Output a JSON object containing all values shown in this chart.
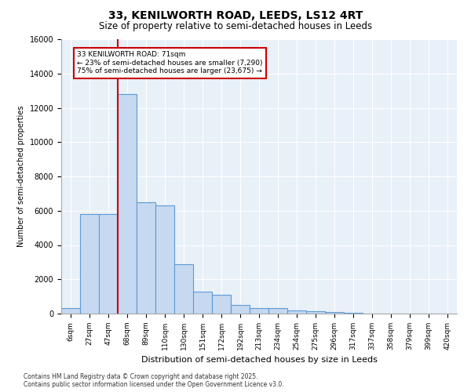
{
  "title_line1": "33, KENILWORTH ROAD, LEEDS, LS12 4RT",
  "title_line2": "Size of property relative to semi-detached houses in Leeds",
  "xlabel": "Distribution of semi-detached houses by size in Leeds",
  "ylabel": "Number of semi-detached properties",
  "footnote": "Contains HM Land Registry data © Crown copyright and database right 2025.\nContains public sector information licensed under the Open Government Licence v3.0.",
  "categories": [
    "6sqm",
    "27sqm",
    "47sqm",
    "68sqm",
    "89sqm",
    "110sqm",
    "130sqm",
    "151sqm",
    "172sqm",
    "192sqm",
    "213sqm",
    "234sqm",
    "254sqm",
    "275sqm",
    "296sqm",
    "317sqm",
    "337sqm",
    "358sqm",
    "379sqm",
    "399sqm",
    "420sqm"
  ],
  "values": [
    300,
    5800,
    5800,
    12800,
    6500,
    6300,
    2900,
    1300,
    1100,
    500,
    300,
    300,
    200,
    150,
    80,
    30,
    5,
    2,
    1,
    1,
    0
  ],
  "bar_color": "#c6d9f0",
  "bar_edge_color": "#5b9bd5",
  "vline_color": "#cc0000",
  "vline_index": 3,
  "annotation_title": "33 KENILWORTH ROAD: 71sqm",
  "annotation_line1": "← 23% of semi-detached houses are smaller (7,290)",
  "annotation_line2": "75% of semi-detached houses are larger (23,675) →",
  "ylim": [
    0,
    16000
  ],
  "yticks": [
    0,
    2000,
    4000,
    6000,
    8000,
    10000,
    12000,
    14000,
    16000
  ],
  "grid_color": "#dce6f1",
  "plot_bg_color": "#e8f0f8"
}
